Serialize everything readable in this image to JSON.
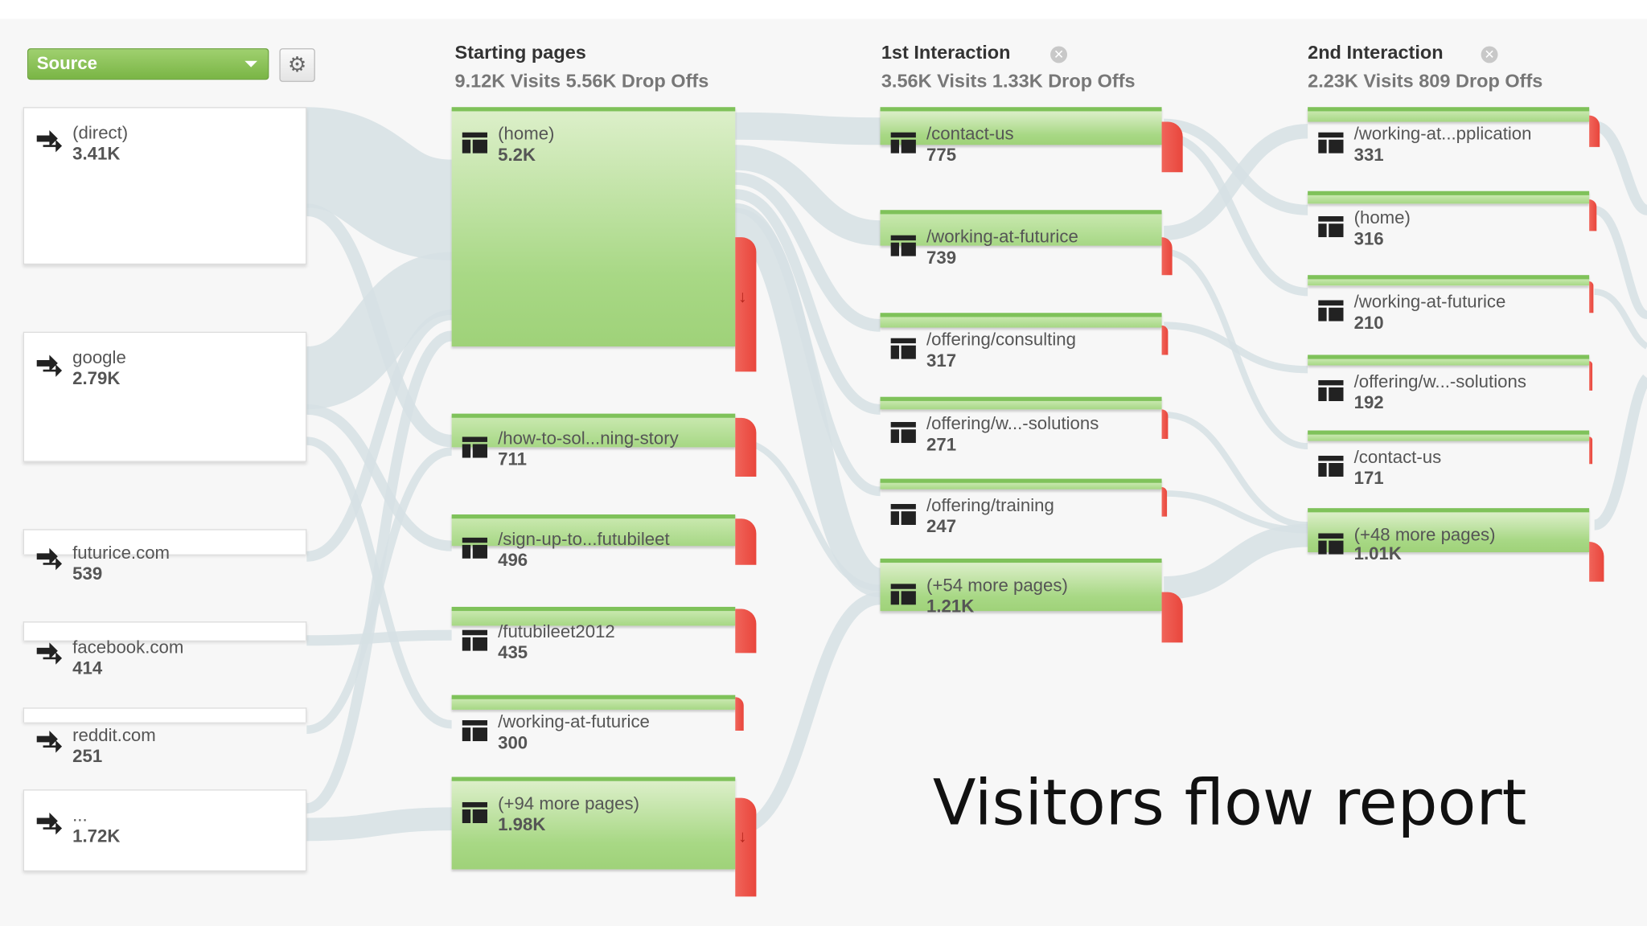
{
  "controls": {
    "source_dropdown": "Source",
    "settings_icon": "gear-icon"
  },
  "columns": {
    "starting": {
      "title": "Starting pages",
      "stats": "9.12K Visits 5.56K Drop Offs"
    },
    "first": {
      "title": "1st Interaction",
      "stats": "3.56K Visits 1.33K Drop Offs"
    },
    "second": {
      "title": "2nd Interaction",
      "stats": "2.23K Visits 809 Drop Offs"
    }
  },
  "sources": [
    {
      "name": "(direct)",
      "count": "3.41K"
    },
    {
      "name": "google",
      "count": "2.79K"
    },
    {
      "name": "futurice.com",
      "count": "539"
    },
    {
      "name": "facebook.com",
      "count": "414"
    },
    {
      "name": "reddit.com",
      "count": "251"
    },
    {
      "name": "...",
      "count": "1.72K"
    }
  ],
  "starting_pages": [
    {
      "label": "(home)",
      "count": "5.2K"
    },
    {
      "label": "/how-to-sol...ning-story",
      "count": "711"
    },
    {
      "label": "/sign-up-to...futubileet",
      "count": "496"
    },
    {
      "label": "/futubileet2012",
      "count": "435"
    },
    {
      "label": "/working-at-futurice",
      "count": "300"
    },
    {
      "label": "(+94 more pages)",
      "count": "1.98K"
    }
  ],
  "first_interaction": [
    {
      "label": "/contact-us",
      "count": "775"
    },
    {
      "label": "/working-at-futurice",
      "count": "739"
    },
    {
      "label": "/offering/consulting",
      "count": "317"
    },
    {
      "label": "/offering/w...-solutions",
      "count": "271"
    },
    {
      "label": "/offering/training",
      "count": "247"
    },
    {
      "label": "(+54 more pages)",
      "count": "1.21K"
    }
  ],
  "second_interaction": [
    {
      "label": "/working-at...pplication",
      "count": "331"
    },
    {
      "label": "(home)",
      "count": "316"
    },
    {
      "label": "/working-at-futurice",
      "count": "210"
    },
    {
      "label": "/offering/w...-solutions",
      "count": "192"
    },
    {
      "label": "/contact-us",
      "count": "171"
    },
    {
      "label": "(+48 more pages)",
      "count": "1.01K"
    }
  ],
  "report_title": "Visitors flow report",
  "colors": {
    "node_green": "#a8d885",
    "node_border": "#7fc25a",
    "drop_off_red": "#e9463c",
    "flow_gray": "#d9e3e6",
    "select_green": "#7ab545"
  }
}
